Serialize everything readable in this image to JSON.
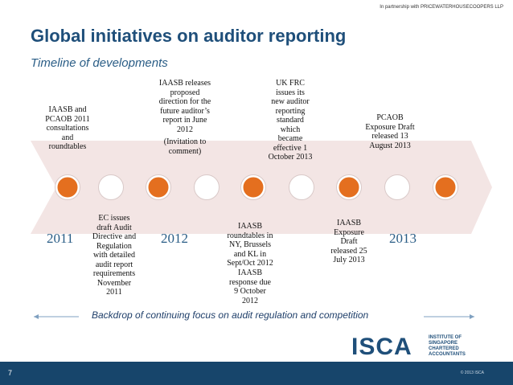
{
  "header": {
    "partner_text": "In partnership with PRICEWATERHOUSECOOPERS LLP",
    "title": "Global initiatives on auditor reporting",
    "subtitle": "Timeline of developments"
  },
  "timeline": {
    "years": [
      "2011",
      "2012",
      "2013"
    ],
    "above": {
      "iaasb_pcaob_2011": [
        "IAASB and",
        "PCAOB 2011",
        "consultations",
        "and",
        "roundtables"
      ],
      "iaasb_releases": [
        "IAASB releases",
        "proposed",
        "direction for the",
        "future auditor’s",
        "report  in June",
        "2012"
      ],
      "invitation": [
        "(Invitation to",
        "comment)"
      ],
      "uk_frc": [
        "UK FRC",
        "issues its",
        "new auditor",
        "reporting",
        "standard",
        "which",
        "became",
        "effective  1",
        "October 2013"
      ],
      "pcaob_draft": [
        "PCAOB",
        "Exposure Draft",
        "released 13",
        "August 2013"
      ]
    },
    "below": {
      "ec_issues": [
        "EC issues",
        "draft Audit",
        "Directive and",
        "Regulation",
        "with detailed",
        "audit report",
        "requirements",
        "November",
        "2011"
      ],
      "iaasb_roundtables": [
        "IAASB",
        "roundtables in",
        "NY, Brussels",
        "and KL in",
        "Sept/Oct 2012"
      ],
      "iaasb_response": [
        "IAASB",
        "response due",
        "9 October",
        "2012"
      ],
      "iaasb_exposure": [
        "IAASB",
        "Exposure",
        "Draft",
        "released 25",
        "July 2013"
      ]
    },
    "milestones": [
      {
        "type": "filled"
      },
      {
        "type": "open"
      },
      {
        "type": "filled"
      },
      {
        "type": "open"
      },
      {
        "type": "filled"
      },
      {
        "type": "open"
      },
      {
        "type": "filled"
      },
      {
        "type": "open"
      },
      {
        "type": "filled"
      }
    ]
  },
  "backdrop_text": "Backdrop of continuing focus on audit regulation and competition",
  "footer": {
    "page_number": "7",
    "copyright": "© 2013 ISCA",
    "logo_main": "ISCA",
    "logo_lines": [
      "INSTITUTE OF",
      "SINGAPORE",
      "CHARTERED",
      "ACCOUNTANTS"
    ]
  },
  "colors": {
    "title": "#1f4f7a",
    "band": "#f2e4e3",
    "milestone_fill": "#e46f1f",
    "footer": "#17456b"
  }
}
